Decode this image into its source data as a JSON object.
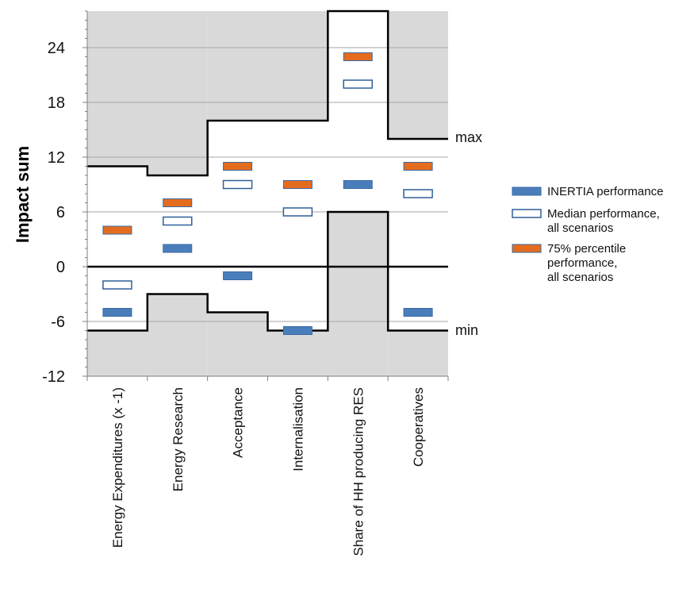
{
  "chart_data": {
    "type": "bar",
    "ylabel": "Impact sum",
    "ylim": [
      -12,
      28
    ],
    "yticks": [
      -12,
      -6,
      0,
      6,
      12,
      18,
      24
    ],
    "grid": "horizontal gridlines at major ticks",
    "categories": [
      "Energy Expenditures (x -1)",
      "Energy Research",
      "Acceptance",
      "Internalisation",
      "Share of HH producing RES",
      "Cooperatives"
    ],
    "max_boundary": [
      11,
      10,
      16,
      16,
      28,
      14
    ],
    "min_boundary": [
      -7,
      -3,
      -5,
      -7,
      6,
      -7
    ],
    "series": [
      {
        "name": "INERTIA performance",
        "values": [
          -5,
          2,
          -1,
          -7,
          9,
          -5
        ],
        "color": "#4a7ebb"
      },
      {
        "name": "Median performance, all scenarios",
        "values": [
          -2,
          5,
          9,
          6,
          20,
          8
        ],
        "color": "#ffffff",
        "edge": "#2f5f9a"
      },
      {
        "name": "75% percentile performance, all scenarios",
        "values": [
          4,
          7,
          11,
          9,
          23,
          11
        ],
        "color": "#e46c1e"
      }
    ],
    "legend_labels": [
      [
        "INERTIA performance"
      ],
      [
        "Median performance,",
        "all scenarios"
      ],
      [
        "75% percentile",
        "performance,",
        "all scenarios"
      ]
    ],
    "annotations": {
      "max": "max",
      "min": "min"
    },
    "legend_position": "right"
  },
  "colors": {
    "shade": "#d9d9d9",
    "boundary": "#000000",
    "grid": "#a6a6a6"
  }
}
